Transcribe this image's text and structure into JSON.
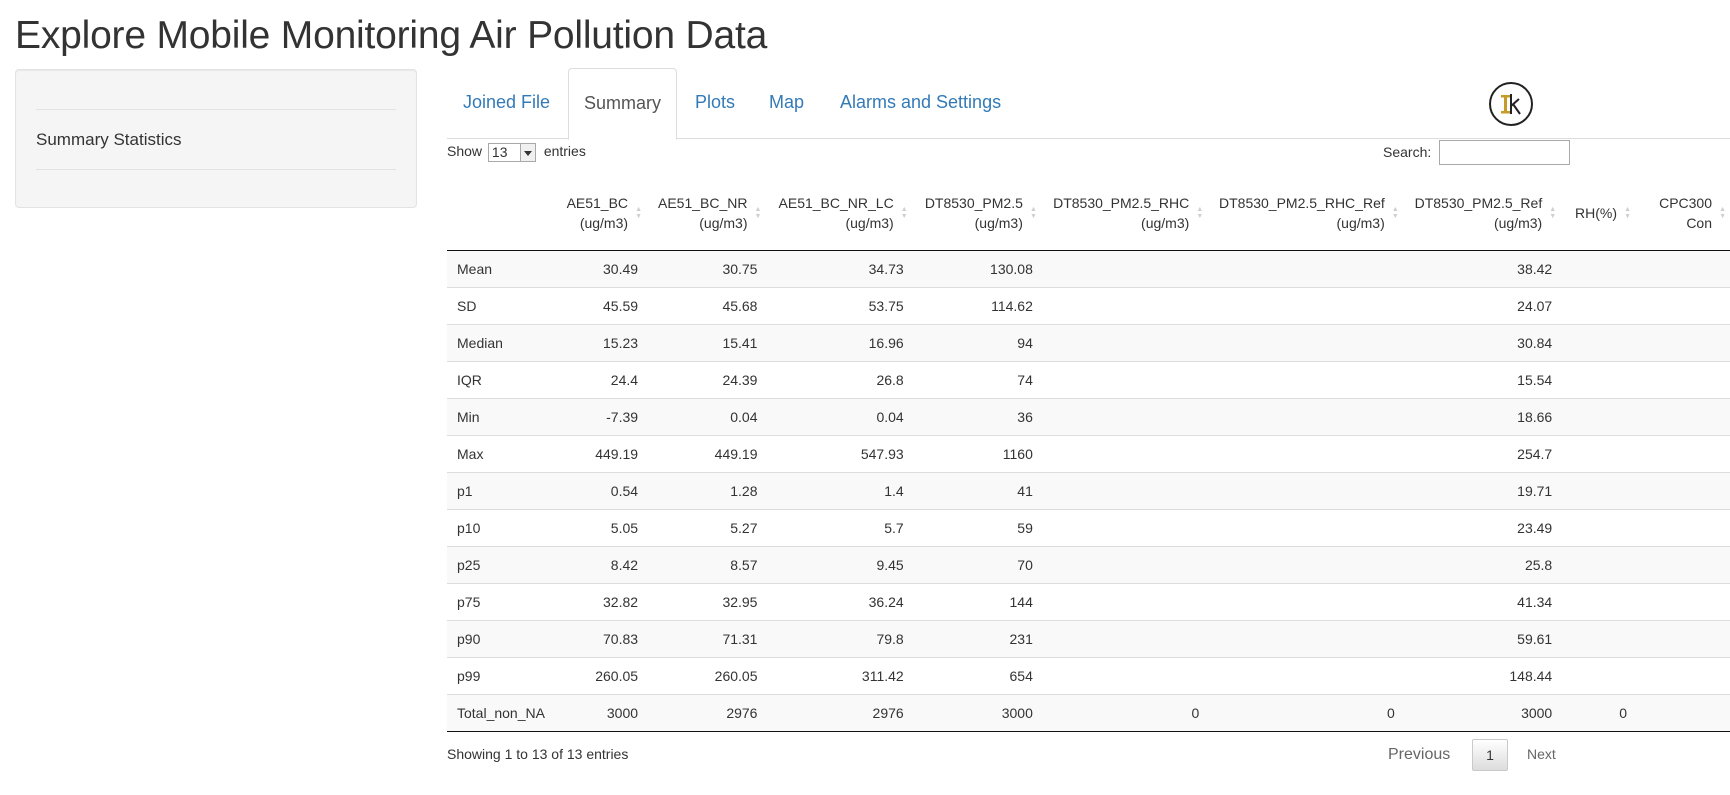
{
  "app": {
    "title": "Explore Mobile Monitoring Air Pollution Data"
  },
  "sidebar": {
    "heading": "Summary Statistics"
  },
  "tabs": [
    {
      "label": "Joined File",
      "active": false
    },
    {
      "label": "Summary",
      "active": true
    },
    {
      "label": "Plots",
      "active": false
    },
    {
      "label": "Map",
      "active": false
    },
    {
      "label": "Alarms and Settings",
      "active": false
    }
  ],
  "logo": {
    "icon": "ik-logo-icon"
  },
  "table_controls": {
    "show_label": "Show",
    "entries_value": "13",
    "entries_label": "entries",
    "search_label": "Search:",
    "search_value": ""
  },
  "table": {
    "columns": [
      "",
      "AE51_BC\n(ug/m3)",
      "AE51_BC_NR\n(ug/m3)",
      "AE51_BC_NR_LC\n(ug/m3)",
      "DT8530_PM2.5\n(ug/m3)",
      "DT8530_PM2.5_RHC\n(ug/m3)",
      "DT8530_PM2.5_RHC_Ref\n(ug/m3)",
      "DT8530_PM2.5_Ref\n(ug/m3)",
      "RH(%)",
      "CPC300\nCon"
    ],
    "rows": [
      [
        "Mean",
        "30.49",
        "30.75",
        "34.73",
        "130.08",
        "",
        "",
        "38.42",
        "",
        ""
      ],
      [
        "SD",
        "45.59",
        "45.68",
        "53.75",
        "114.62",
        "",
        "",
        "24.07",
        "",
        ""
      ],
      [
        "Median",
        "15.23",
        "15.41",
        "16.96",
        "94",
        "",
        "",
        "30.84",
        "",
        ""
      ],
      [
        "IQR",
        "24.4",
        "24.39",
        "26.8",
        "74",
        "",
        "",
        "15.54",
        "",
        ""
      ],
      [
        "Min",
        "-7.39",
        "0.04",
        "0.04",
        "36",
        "",
        "",
        "18.66",
        "",
        ""
      ],
      [
        "Max",
        "449.19",
        "449.19",
        "547.93",
        "1160",
        "",
        "",
        "254.7",
        "",
        ""
      ],
      [
        "p1",
        "0.54",
        "1.28",
        "1.4",
        "41",
        "",
        "",
        "19.71",
        "",
        ""
      ],
      [
        "p10",
        "5.05",
        "5.27",
        "5.7",
        "59",
        "",
        "",
        "23.49",
        "",
        ""
      ],
      [
        "p25",
        "8.42",
        "8.57",
        "9.45",
        "70",
        "",
        "",
        "25.8",
        "",
        ""
      ],
      [
        "p75",
        "32.82",
        "32.95",
        "36.24",
        "144",
        "",
        "",
        "41.34",
        "",
        ""
      ],
      [
        "p90",
        "70.83",
        "71.31",
        "79.8",
        "231",
        "",
        "",
        "59.61",
        "",
        ""
      ],
      [
        "p99",
        "260.05",
        "260.05",
        "311.42",
        "654",
        "",
        "",
        "148.44",
        "",
        ""
      ],
      [
        "Total_non_NA",
        "3000",
        "2976",
        "2976",
        "3000",
        "0",
        "0",
        "3000",
        "0",
        ""
      ]
    ]
  },
  "pagination": {
    "info": "Showing 1 to 13 of 13 entries",
    "previous": "Previous",
    "current_page": "1",
    "next": "Next"
  },
  "colors": {
    "link": "#337ab7",
    "active_tab_text": "#555555",
    "stripe": "#f9f9f9",
    "border": "#dddddd"
  }
}
